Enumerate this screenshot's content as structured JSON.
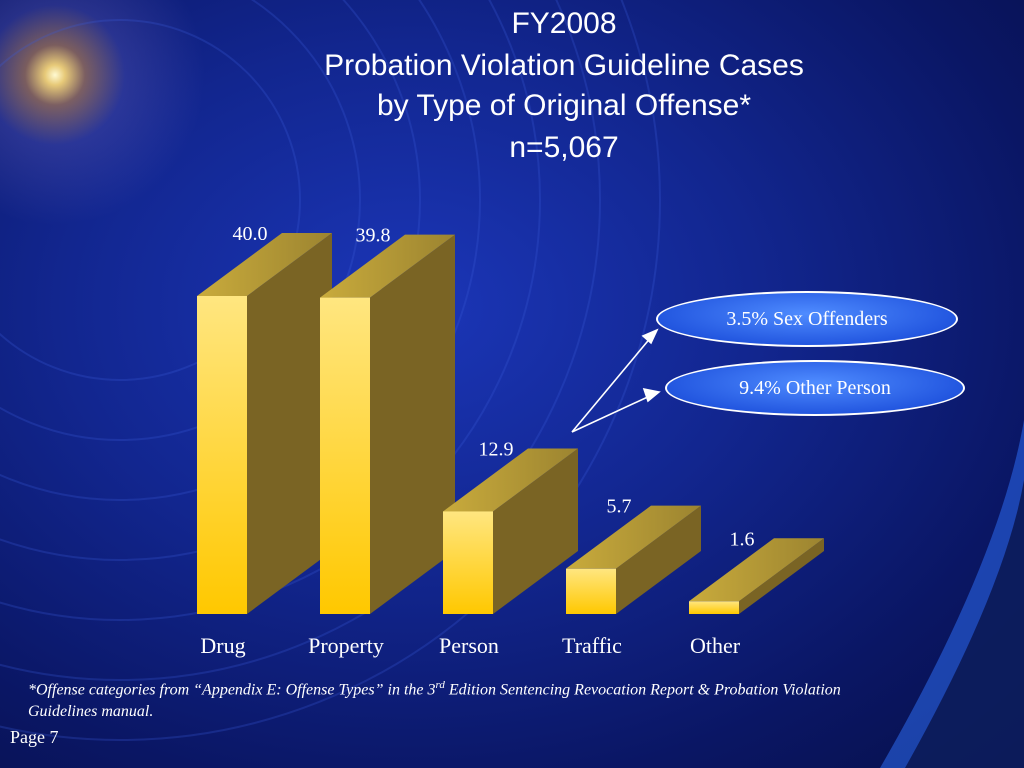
{
  "title": {
    "line1": "FY2008",
    "line2": "Probation Violation Guideline Cases",
    "line3": "by Type of Original Offense*",
    "line4": "n=5,067"
  },
  "chart_data": {
    "type": "bar",
    "categories": [
      "Drug",
      "Property",
      "Person",
      "Traffic",
      "Other"
    ],
    "values": [
      40.0,
      39.8,
      12.9,
      5.7,
      1.6
    ],
    "value_labels": [
      "40.0",
      "39.8",
      "12.9",
      "5.7",
      "1.6"
    ],
    "title": "FY2008 Probation Violation Guideline Cases by Type of Original Offense*",
    "xlabel": "",
    "ylabel": "",
    "ylim": [
      0,
      40
    ],
    "grid": false,
    "legend": "none",
    "bar_color": "#ffd21a",
    "bar_side_color": "#7a6424",
    "bar_top_color": "#b49a36"
  },
  "callouts": {
    "sex_offenders": "3.5% Sex Offenders",
    "other_person": "9.4% Other Person"
  },
  "footnote": {
    "prefix": "*Offense categories from “Appendix E: Offense Types” in the 3",
    "superscript": "rd",
    "suffix": " Edition Sentencing Revocation Report & Probation Violation Guidelines manual."
  },
  "page_label": "Page 7"
}
